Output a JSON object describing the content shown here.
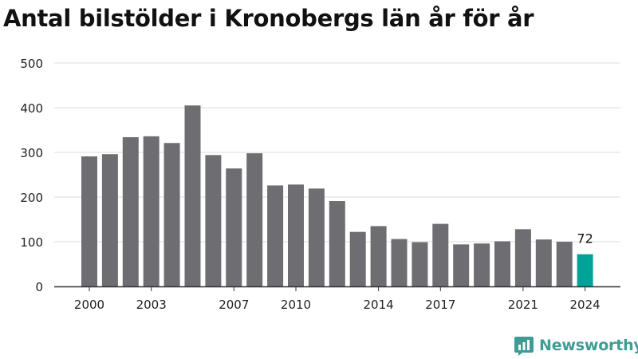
{
  "chart_data": {
    "type": "bar",
    "title": "Antal bilstölder i Kronobergs län år för år",
    "categories": [
      "2000",
      "2001",
      "2002",
      "2003",
      "2004",
      "2005",
      "2006",
      "2007",
      "2008",
      "2009",
      "2010",
      "2011",
      "2012",
      "2013",
      "2014",
      "2015",
      "2016",
      "2017",
      "2018",
      "2019",
      "2020",
      "2021",
      "2022",
      "2023",
      "2024"
    ],
    "values": [
      291,
      296,
      334,
      336,
      321,
      405,
      294,
      264,
      298,
      226,
      228,
      219,
      191,
      122,
      135,
      106,
      99,
      140,
      94,
      96,
      101,
      128,
      105,
      100,
      72
    ],
    "x_tick_labels": [
      "2000",
      "2003",
      "2007",
      "2010",
      "2014",
      "2017",
      "2021",
      "2024"
    ],
    "y_ticks": [
      0,
      100,
      200,
      300,
      400,
      500
    ],
    "ylim": [
      0,
      500
    ],
    "grid": true,
    "highlight": {
      "category": "2024",
      "label": "72"
    },
    "colors": {
      "bar": "#6e6d72",
      "highlight": "#00a398",
      "grid": "#dcdcdc",
      "axis": "#333333",
      "text": "#222222"
    }
  },
  "brand": {
    "name": "Newsworthy",
    "icon": "newsworthy-logo-icon",
    "color": "#3e9c94"
  }
}
